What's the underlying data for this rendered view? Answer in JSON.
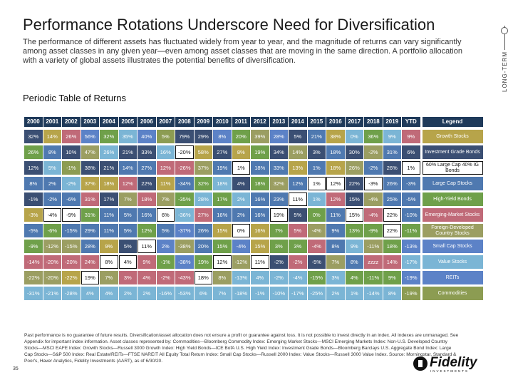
{
  "header": {
    "title": "Performance Rotations Underscore Need for Diversification",
    "subtitle": "The performance of different assets has fluctuated widely from year to year, and the magnitude of returns can vary significantly among asset classes in any given year—even among asset classes that are moving in the same direction. A portfolio allocation with a variety of global assets illustrates the potential benefits of diversification.",
    "side_tag": "LONG-TERM"
  },
  "section_title": "Periodic Table of Returns",
  "table": {
    "years": [
      "2000",
      "2001",
      "2002",
      "2003",
      "2004",
      "2005",
      "2006",
      "2007",
      "2008",
      "2009",
      "2010",
      "2011",
      "2012",
      "2013",
      "2014",
      "2015",
      "2016",
      "2017",
      "2018",
      "2019",
      "YTD"
    ],
    "legend_header": "Legend",
    "rows": [
      {
        "cells": [
          [
            "32%",
            "ig"
          ],
          [
            "14%",
            "gr"
          ],
          [
            "26%",
            "em"
          ],
          [
            "56%",
            "sc"
          ],
          [
            "32%",
            "hy"
          ],
          [
            "35%",
            "re"
          ],
          [
            "40%",
            "sc"
          ],
          [
            "5%",
            "cm"
          ],
          [
            "79%",
            "ig"
          ],
          [
            "29%",
            "ig"
          ],
          [
            "8%",
            "sc"
          ],
          [
            "20%",
            "hy"
          ],
          [
            "39%",
            "ds"
          ],
          [
            "28%",
            "sc"
          ],
          [
            "5%",
            "ig"
          ],
          [
            "21%",
            "lc"
          ],
          [
            "38%",
            "gr"
          ],
          [
            "0%",
            "re"
          ],
          [
            "36%",
            "hy"
          ],
          [
            "9%",
            "re"
          ],
          [
            "9%",
            "em"
          ]
        ],
        "legend": [
          "Growth Stocks",
          "gr"
        ]
      },
      {
        "cells": [
          [
            "26%",
            "hy"
          ],
          [
            "8%",
            "lc"
          ],
          [
            "10%",
            "ig"
          ],
          [
            "47%",
            "ds"
          ],
          [
            "26%",
            "re"
          ],
          [
            "21%",
            "ig"
          ],
          [
            "33%",
            "ig"
          ],
          [
            "16%",
            "re"
          ],
          [
            "-20%",
            "wh"
          ],
          [
            "58%",
            "gr"
          ],
          [
            "27%",
            "ig"
          ],
          [
            "8%",
            "gr"
          ],
          [
            "19%",
            "hy"
          ],
          [
            "34%",
            "ig"
          ],
          [
            "14%",
            "ds"
          ],
          [
            "3%",
            "ig"
          ],
          [
            "18%",
            "lc"
          ],
          [
            "30%",
            "ig"
          ],
          [
            "-2%",
            "ds"
          ],
          [
            "31%",
            "lc"
          ],
          [
            "6%",
            "ig"
          ]
        ],
        "legend": [
          "Investment Grade Bonds",
          "ig"
        ]
      },
      {
        "cells": [
          [
            "12%",
            "ig"
          ],
          [
            "5%",
            "re"
          ],
          [
            "-1%",
            "cm"
          ],
          [
            "38%",
            "ig"
          ],
          [
            "21%",
            "ig"
          ],
          [
            "14%",
            "lc"
          ],
          [
            "27%",
            "lc"
          ],
          [
            "12%",
            "em"
          ],
          [
            "-26%",
            "em"
          ],
          [
            "37%",
            "ds"
          ],
          [
            "19%",
            "lc"
          ],
          [
            "1%",
            "wh"
          ],
          [
            "18%",
            "lc"
          ],
          [
            "33%",
            "lc"
          ],
          [
            "13%",
            "gr"
          ],
          [
            "1%",
            "lc"
          ],
          [
            "18%",
            "gr"
          ],
          [
            "26%",
            "ds"
          ],
          [
            "-2%",
            "lc"
          ],
          [
            "26%",
            "ig"
          ],
          [
            "1%",
            "wh"
          ]
        ],
        "legend": [
          "60% Large Cap 40% IG Bonds",
          "wh"
        ]
      },
      {
        "cells": [
          [
            "8%",
            "lc"
          ],
          [
            "2%",
            "lc"
          ],
          [
            "-2%",
            "re"
          ],
          [
            "37%",
            "gr"
          ],
          [
            "18%",
            "gr"
          ],
          [
            "12%",
            "em"
          ],
          [
            "22%",
            "ig"
          ],
          [
            "11%",
            "gr"
          ],
          [
            "-34%",
            "lc"
          ],
          [
            "32%",
            "hy"
          ],
          [
            "18%",
            "re"
          ],
          [
            "4%",
            "ig"
          ],
          [
            "18%",
            "hy"
          ],
          [
            "32%",
            "ds"
          ],
          [
            "12%",
            "lc"
          ],
          [
            "1%",
            "wh"
          ],
          [
            "12%",
            "wh"
          ],
          [
            "22%",
            "ig"
          ],
          [
            "-3%",
            "wh"
          ],
          [
            "26%",
            "lc"
          ],
          [
            "-3%",
            "lc"
          ]
        ],
        "legend": [
          "Large Cap Stocks",
          "lc"
        ]
      },
      {
        "cells": [
          [
            "-1%",
            "ig"
          ],
          [
            "-2%",
            "lc"
          ],
          [
            "-6%",
            "lc"
          ],
          [
            "31%",
            "em"
          ],
          [
            "17%",
            "ig"
          ],
          [
            "7%",
            "ds"
          ],
          [
            "18%",
            "em"
          ],
          [
            "7%",
            "ds"
          ],
          [
            "-35%",
            "hy"
          ],
          [
            "28%",
            "re"
          ],
          [
            "17%",
            "hy"
          ],
          [
            "2%",
            "re"
          ],
          [
            "16%",
            "lc"
          ],
          [
            "23%",
            "lc"
          ],
          [
            "11%",
            "wh"
          ],
          [
            "1%",
            "re"
          ],
          [
            "12%",
            "em"
          ],
          [
            "15%",
            "ig"
          ],
          [
            "-4%",
            "ds"
          ],
          [
            "25%",
            "lc"
          ],
          [
            "-5%",
            "lc"
          ]
        ],
        "legend": [
          "High-Yield Bonds",
          "hy"
        ]
      },
      {
        "cells": [
          [
            "-3%",
            "gr"
          ],
          [
            "-4%",
            "wh"
          ],
          [
            "-9%",
            "wh"
          ],
          [
            "31%",
            "hy"
          ],
          [
            "11%",
            "lc"
          ],
          [
            "5%",
            "lc"
          ],
          [
            "16%",
            "lc"
          ],
          [
            "6%",
            "wh"
          ],
          [
            "-36%",
            "re"
          ],
          [
            "27%",
            "em"
          ],
          [
            "16%",
            "lc"
          ],
          [
            "2%",
            "lc"
          ],
          [
            "16%",
            "lc"
          ],
          [
            "19%",
            "wh"
          ],
          [
            "5%",
            "ig"
          ],
          [
            "0%",
            "hy"
          ],
          [
            "11%",
            "lc"
          ],
          [
            "15%",
            "wh"
          ],
          [
            "-4%",
            "em"
          ],
          [
            "22%",
            "wh"
          ],
          [
            "-10%",
            "lc"
          ]
        ],
        "legend": [
          "Emerging-Market Stocks",
          "em"
        ]
      },
      {
        "cells": [
          [
            "-5%",
            "lc"
          ],
          [
            "-6%",
            "hy"
          ],
          [
            "-15%",
            "lc"
          ],
          [
            "29%",
            "lc"
          ],
          [
            "11%",
            "lc"
          ],
          [
            "5%",
            "lc"
          ],
          [
            "12%",
            "hy"
          ],
          [
            "5%",
            "lc"
          ],
          [
            "-37%",
            "sc"
          ],
          [
            "26%",
            "lc"
          ],
          [
            "15%",
            "gr"
          ],
          [
            "0%",
            "wh"
          ],
          [
            "16%",
            "gr"
          ],
          [
            "7%",
            "hy"
          ],
          [
            "5%",
            "em"
          ],
          [
            "-4%",
            "ds"
          ],
          [
            "9%",
            "lc"
          ],
          [
            "13%",
            "hy"
          ],
          [
            "-9%",
            "hy"
          ],
          [
            "22%",
            "wh"
          ],
          [
            "-11%",
            "hy"
          ]
        ],
        "legend": [
          "Foreign-Developed Country Stocks",
          "ds"
        ]
      },
      {
        "cells": [
          [
            "-9%",
            "hy"
          ],
          [
            "-12%",
            "ds"
          ],
          [
            "-15%",
            "ds"
          ],
          [
            "28%",
            "lc"
          ],
          [
            "9%",
            "gr"
          ],
          [
            "5%",
            "ig"
          ],
          [
            "11%",
            "wh"
          ],
          [
            "2%",
            "sc"
          ],
          [
            "-38%",
            "ds"
          ],
          [
            "20%",
            "lc"
          ],
          [
            "15%",
            "hy"
          ],
          [
            "-4%",
            "sc"
          ],
          [
            "15%",
            "gr"
          ],
          [
            "3%",
            "hy"
          ],
          [
            "3%",
            "hy"
          ],
          [
            "-4%",
            "em"
          ],
          [
            "8%",
            "lc"
          ],
          [
            "9%",
            "re"
          ],
          [
            "-11%",
            "ds"
          ],
          [
            "18%",
            "hy"
          ],
          [
            "-13%",
            "sc"
          ]
        ],
        "legend": [
          "Small Cap Stocks",
          "sc"
        ]
      },
      {
        "cells": [
          [
            "-14%",
            "em"
          ],
          [
            "-20%",
            "em"
          ],
          [
            "-20%",
            "em"
          ],
          [
            "24%",
            "em"
          ],
          [
            "8%",
            "wh"
          ],
          [
            "4%",
            "wh"
          ],
          [
            "9%",
            "em"
          ],
          [
            "-1%",
            "hy"
          ],
          [
            "-38%",
            "sc"
          ],
          [
            "19%",
            "hy"
          ],
          [
            "12%",
            "wh"
          ],
          [
            "-12%",
            "ds"
          ],
          [
            "11%",
            "wh"
          ],
          [
            "-2%",
            "ig"
          ],
          [
            "-2%",
            "em"
          ],
          [
            "-5%",
            "ig"
          ],
          [
            "7%",
            "ds"
          ],
          [
            "8%",
            "lc"
          ],
          [
            "zzzz",
            "em"
          ],
          [
            "14%",
            "em"
          ],
          [
            "-17%",
            "re"
          ]
        ],
        "legend": [
          "Value Stocks",
          "re"
        ]
      },
      {
        "cells": [
          [
            "-22%",
            "ds"
          ],
          [
            "-20%",
            "ds"
          ],
          [
            "-22%",
            "gr"
          ],
          [
            "19%",
            "wh"
          ],
          [
            "7%",
            "ds"
          ],
          [
            "3%",
            "em"
          ],
          [
            "4%",
            "em"
          ],
          [
            "-2%",
            "em"
          ],
          [
            "-43%",
            "em"
          ],
          [
            "18%",
            "wh"
          ],
          [
            "8%",
            "ds"
          ],
          [
            "-13%",
            "re"
          ],
          [
            "4%",
            "re"
          ],
          [
            "-2%",
            "re"
          ],
          [
            "-4%",
            "re"
          ],
          [
            "-15%",
            "hy"
          ],
          [
            "3%",
            "re"
          ],
          [
            "4%",
            "hy"
          ],
          [
            "-11%",
            "hy"
          ],
          [
            "9%",
            "hy"
          ],
          [
            "-19%",
            "sc"
          ]
        ],
        "legend": [
          "REITs",
          "sc"
        ]
      },
      {
        "cells": [
          [
            "-31%",
            "re"
          ],
          [
            "-21%",
            "re"
          ],
          [
            "-28%",
            "re"
          ],
          [
            "4%",
            "re"
          ],
          [
            "4%",
            "re"
          ],
          [
            "2%",
            "re"
          ],
          [
            "2%",
            "re"
          ],
          [
            "-16%",
            "re"
          ],
          [
            "-53%",
            "re"
          ],
          [
            "6%",
            "re"
          ],
          [
            "7%",
            "re"
          ],
          [
            "-18%",
            "re"
          ],
          [
            "-1%",
            "re"
          ],
          [
            "-10%",
            "re"
          ],
          [
            "-17%",
            "re"
          ],
          [
            "-25%",
            "re"
          ],
          [
            "2%",
            "re"
          ],
          [
            "1%",
            "re"
          ],
          [
            "-14%",
            "re"
          ],
          [
            "8%",
            "re"
          ],
          [
            "-19%",
            "cm"
          ]
        ],
        "legend": [
          "Commodities",
          "cm"
        ]
      }
    ],
    "colors": {
      "header": "#1f3a5a",
      "gr": "#b7a44a",
      "ig": "#3b4f73",
      "wh": "#ffffff",
      "lc": "#4f79b0",
      "hy": "#6fa04a",
      "em": "#c06a78",
      "ds": "#9b9e62",
      "sc": "#5c82c7",
      "re": "#7bb5d5",
      "cm": "#8c9c52"
    }
  },
  "footnote": "Past performance is no guarantee of future results. Diversification/asset allocation does not ensure a profit or guarantee against loss. It is not possible to invest directly in an index. All indexes are unmanaged. See Appendix for important index information. Asset classes represented by: Commodities—Bloomberg Commodity Index: Emerging Market Stocks—MSCI Emerging Markets Index: Non-U.S. Developed Country Stocks—MSCI EAFE Index: Growth Stocks—Russell 3000 Growth Index: High Yield Bonds—ICE BofA U.S. High Yield Index: Investment Grade Bonds—Bloomberg Barclays U.S. Aggregate Bond Index: Large Cap Stocks—S&P 500 Index: Real Estate/REITs—FTSE NAREIT All Equity Total Return Index: Small Cap Stocks—Russell 2000 Index: Value Stocks—Russell 3000 Value Index. Source: Morningstar, Standard & Poor's, Haver Analytics, Fidelity Investments (AART), as of 6/30/20.",
  "page_number": "35",
  "logo": {
    "word": "Fidelity",
    "sub": "INVESTMENTS"
  }
}
